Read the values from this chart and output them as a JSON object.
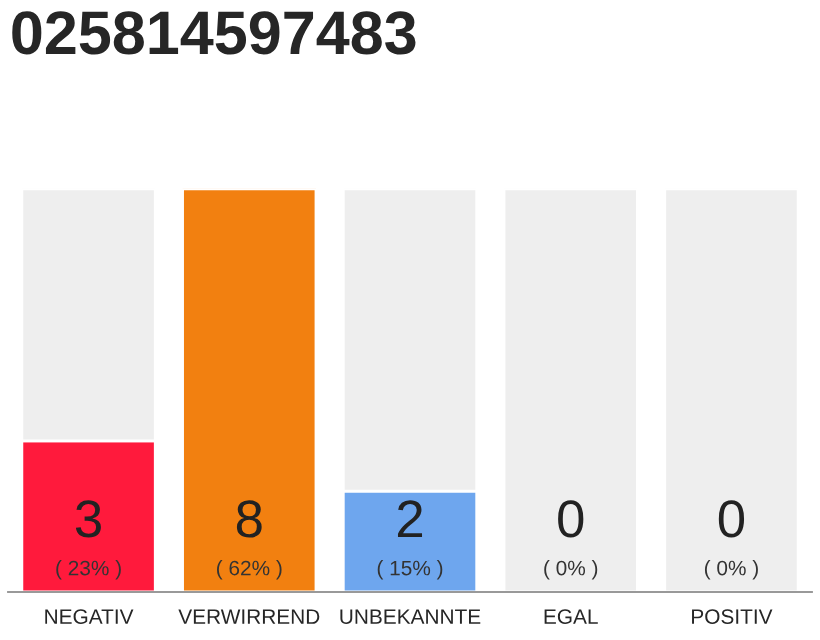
{
  "chart_data": {
    "type": "bar",
    "title": "025814597483",
    "stacked": true,
    "categories": [
      "NEGATIV",
      "VERWIRREND",
      "UNBEKANNTE",
      "EGAL",
      "POSITIV"
    ],
    "series": [
      {
        "colors": [
          "#ff1a3c",
          "#f28010",
          "#6ea6ee",
          null,
          null
        ],
        "values": [
          3,
          8,
          2,
          0,
          0
        ],
        "value_labels": [
          "3",
          "8",
          "2",
          "0",
          "0"
        ]
      },
      {
        "color": "#eeeeee",
        "values": [
          5,
          null,
          6,
          8,
          8
        ]
      }
    ],
    "annotations": [
      "( 23% )",
      "( 62% )",
      "( 15% )",
      "( 0% )",
      "( 0% )"
    ],
    "grid": false,
    "legend": false
  }
}
